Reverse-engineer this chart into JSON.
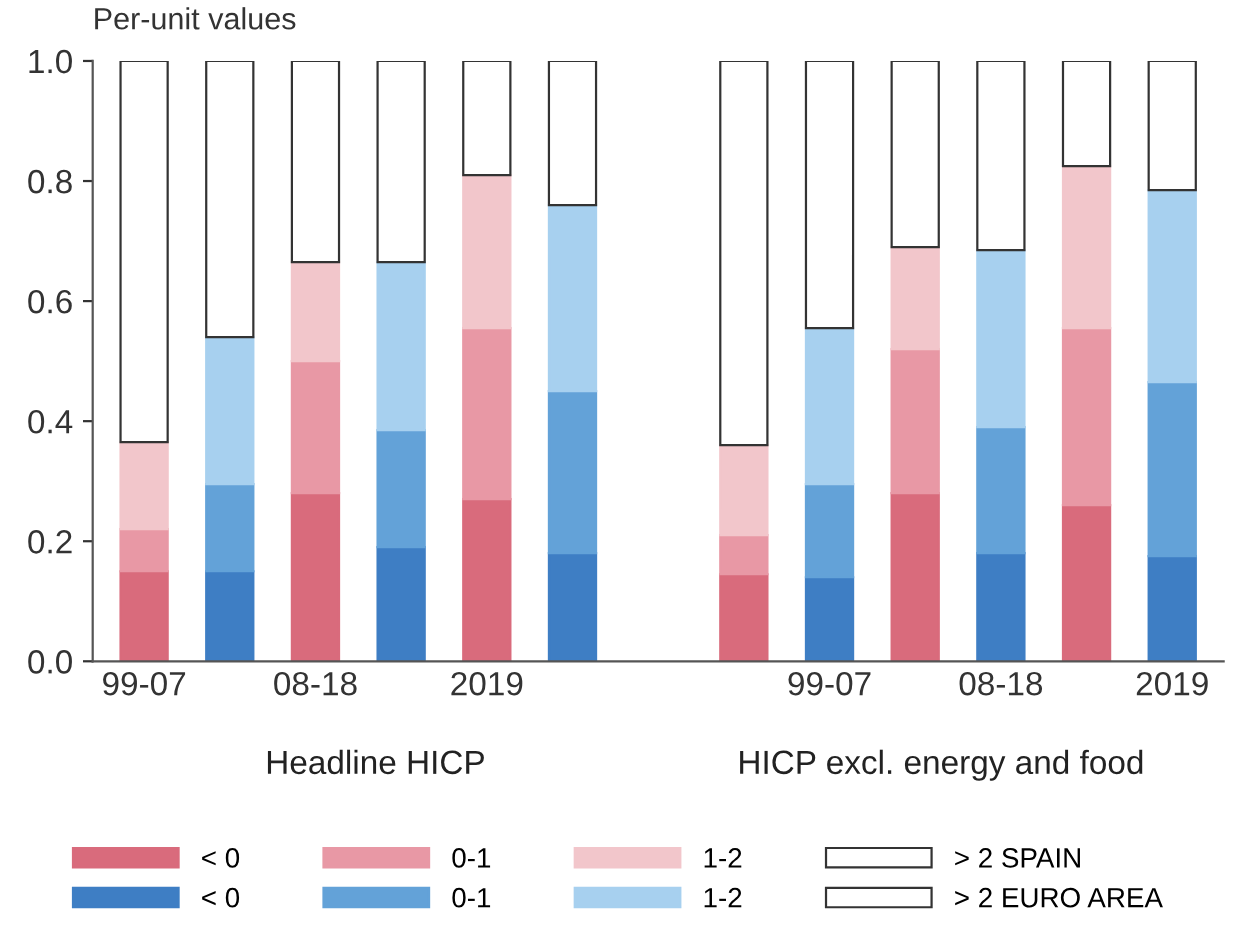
{
  "chart_data": {
    "type": "bar",
    "stacked": true,
    "ylabel": "Per-unit values",
    "categories": [
      "99-07",
      null,
      "08-18",
      null,
      "2019",
      null,
      null,
      null,
      "99-07",
      null,
      "08-18",
      null,
      "2019"
    ],
    "series": [
      {
        "name": "< 0",
        "color": "#d96b7c",
        "values": [
          0.15,
          null,
          0.28,
          null,
          0.27,
          null,
          null,
          0.145,
          null,
          0.28,
          null,
          0.26,
          null
        ]
      },
      {
        "name": "0-1",
        "color": "#e898a5",
        "values": [
          0.07,
          null,
          0.22,
          null,
          0.285,
          null,
          null,
          0.065,
          null,
          0.24,
          null,
          0.295,
          null
        ]
      },
      {
        "name": "1-2",
        "color": "#f2c6cb",
        "values": [
          0.145,
          null,
          0.165,
          null,
          0.255,
          null,
          null,
          0.15,
          null,
          0.17,
          null,
          0.27,
          null
        ]
      },
      {
        "name": "> 2 SPAIN",
        "color": "#ffffff",
        "values": [
          0.635,
          null,
          0.335,
          null,
          0.19,
          null,
          null,
          0.64,
          null,
          0.31,
          null,
          0.175,
          null
        ]
      },
      {
        "name": "< 0",
        "color": "#3e7ec4",
        "values": [
          null,
          0.15,
          null,
          0.19,
          null,
          0.18,
          null,
          null,
          0.14,
          null,
          0.18,
          null,
          0.175
        ]
      },
      {
        "name": "0-1",
        "color": "#63a2d8",
        "values": [
          null,
          0.145,
          null,
          0.195,
          null,
          0.27,
          null,
          null,
          0.155,
          null,
          0.21,
          null,
          0.29
        ]
      },
      {
        "name": "1-2",
        "color": "#a7d0ef",
        "values": [
          null,
          0.245,
          null,
          0.28,
          null,
          0.31,
          null,
          null,
          0.26,
          null,
          0.295,
          null,
          0.32
        ]
      },
      {
        "name": "> 2 EURO AREA",
        "color": "#ffffff",
        "values": [
          null,
          0.46,
          null,
          0.335,
          null,
          0.24,
          null,
          null,
          0.445,
          null,
          0.315,
          null,
          0.215
        ]
      }
    ],
    "ylim": [
      0,
      1
    ],
    "yticks": [
      {
        "value": 0,
        "label": "0.0"
      },
      {
        "value": 0.2,
        "label": "0.2"
      },
      {
        "value": 0.4,
        "label": "0.4"
      },
      {
        "value": 0.6,
        "label": "0.6"
      },
      {
        "value": 0.8,
        "label": "0.8"
      },
      {
        "value": 1,
        "label": "1.0"
      }
    ],
    "annotations": [
      "Headline HICP",
      "HICP excl. energy and food"
    ],
    "legend": "bottom",
    "grid": false
  }
}
